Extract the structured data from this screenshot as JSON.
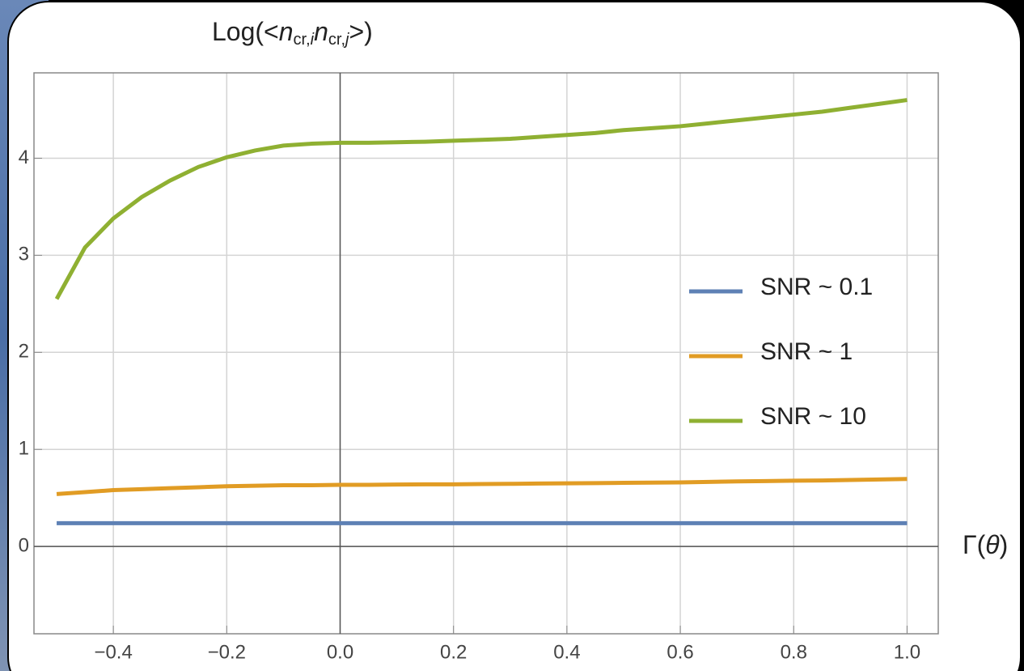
{
  "chart_data": {
    "type": "line",
    "title": [
      "Log(<",
      "n",
      "cr,",
      "i",
      "n",
      "cr,",
      "j",
      ">)"
    ],
    "x_label": [
      "Γ(",
      "θ",
      ")"
    ],
    "x": [
      -0.5,
      -0.45,
      -0.4,
      -0.35,
      -0.3,
      -0.25,
      -0.2,
      -0.15,
      -0.1,
      -0.05,
      0,
      0.05,
      0.1,
      0.15,
      0.2,
      0.25,
      0.3,
      0.35,
      0.4,
      0.45,
      0.5,
      0.55,
      0.6,
      0.65,
      0.7,
      0.75,
      0.8,
      0.85,
      0.9,
      0.95,
      1.0
    ],
    "series": [
      {
        "name": "SNR ~ 0.1",
        "color": "#5e81b5",
        "values": [
          0.24,
          0.24,
          0.24,
          0.24,
          0.24,
          0.24,
          0.24,
          0.24,
          0.24,
          0.24,
          0.24,
          0.24,
          0.24,
          0.24,
          0.24,
          0.24,
          0.24,
          0.24,
          0.24,
          0.24,
          0.24,
          0.24,
          0.24,
          0.24,
          0.24,
          0.24,
          0.24,
          0.24,
          0.24,
          0.24,
          0.24
        ]
      },
      {
        "name": "SNR ~ 1",
        "color": "#e19c24",
        "values": [
          0.54,
          0.56,
          0.58,
          0.59,
          0.6,
          0.61,
          0.62,
          0.625,
          0.63,
          0.63,
          0.635,
          0.635,
          0.638,
          0.64,
          0.64,
          0.643,
          0.645,
          0.648,
          0.65,
          0.652,
          0.655,
          0.658,
          0.66,
          0.665,
          0.67,
          0.673,
          0.677,
          0.68,
          0.685,
          0.69,
          0.695
        ]
      },
      {
        "name": "SNR ~ 10",
        "color": "#8fb032",
        "values": [
          2.55,
          3.08,
          3.38,
          3.6,
          3.77,
          3.91,
          4.01,
          4.08,
          4.13,
          4.15,
          4.16,
          4.16,
          4.165,
          4.17,
          4.18,
          4.19,
          4.2,
          4.22,
          4.24,
          4.26,
          4.29,
          4.31,
          4.33,
          4.36,
          4.39,
          4.42,
          4.45,
          4.48,
          4.52,
          4.56,
          4.6
        ]
      }
    ],
    "xlim": [
      -0.54,
      1.055
    ],
    "ylim": [
      -0.9,
      4.88
    ],
    "xticks": [
      {
        "value": -0.4,
        "label": "−0.4"
      },
      {
        "value": -0.2,
        "label": "−0.2"
      },
      {
        "value": 0,
        "label": "0.0"
      },
      {
        "value": 0.2,
        "label": "0.2"
      },
      {
        "value": 0.4,
        "label": "0.4"
      },
      {
        "value": 0.6,
        "label": "0.6"
      },
      {
        "value": 0.8,
        "label": "0.8"
      },
      {
        "value": 1.0,
        "label": "1.0"
      }
    ],
    "yticks": [
      0,
      1,
      2,
      3,
      4
    ],
    "grid": true,
    "legend": "right"
  }
}
